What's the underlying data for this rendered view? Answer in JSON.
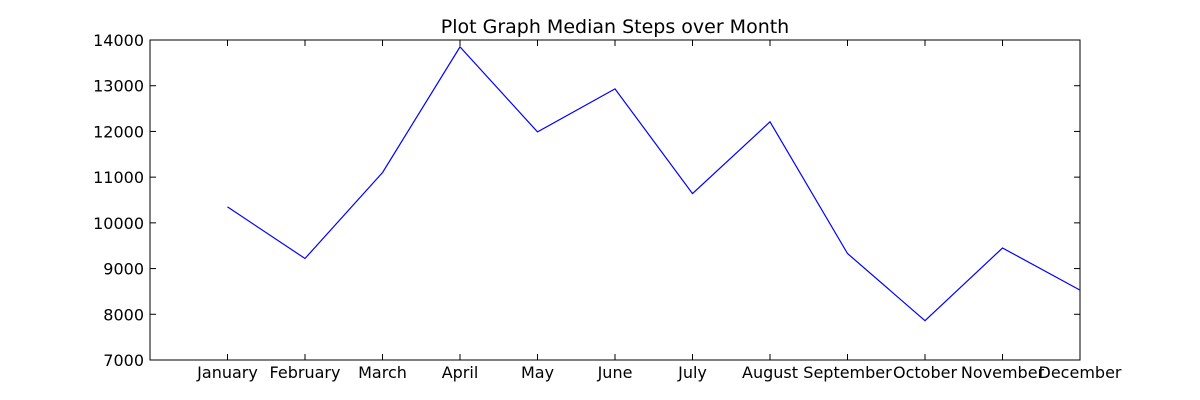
{
  "chart_data": {
    "type": "line",
    "title": "Plot Graph Median Steps over Month",
    "xlabel": "",
    "ylabel": "",
    "categories": [
      "January",
      "February",
      "March",
      "April",
      "May",
      "June",
      "July",
      "August",
      "September",
      "October",
      "November",
      "December"
    ],
    "xlim": [
      -1,
      11
    ],
    "ylim": [
      7000,
      14000
    ],
    "yticks": [
      7000,
      8000,
      9000,
      10000,
      11000,
      12000,
      13000,
      14000
    ],
    "grid": false,
    "legend": "none",
    "series": [
      {
        "color": "#0000ff",
        "values": [
          10350,
          9220,
          11100,
          13850,
          11990,
          12930,
          10640,
          12210,
          9330,
          7860,
          9450,
          8530
        ]
      }
    ]
  }
}
